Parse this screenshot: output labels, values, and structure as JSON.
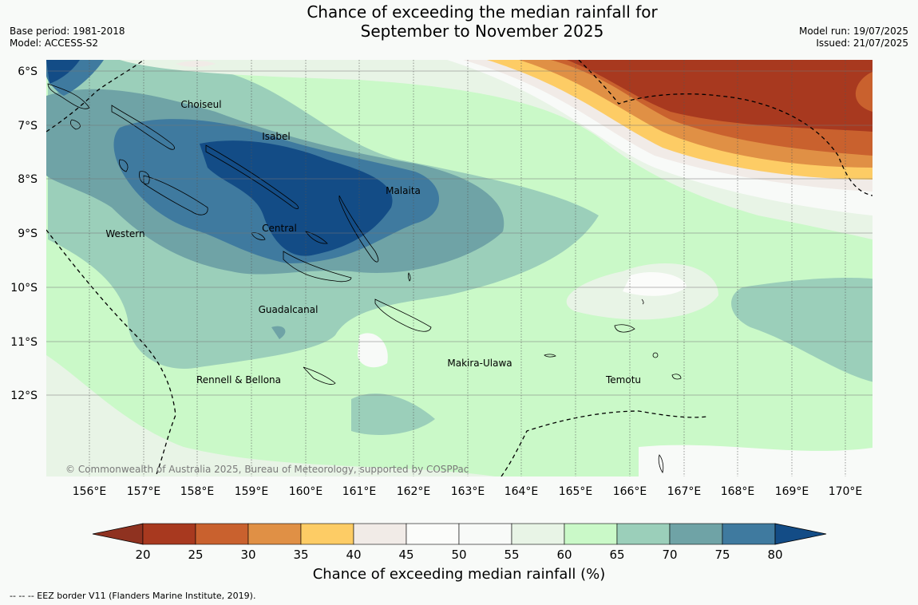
{
  "title_line1": "Chance of exceeding the median rainfall for",
  "title_line2": "September to November 2025",
  "base_period": "Base period: 1981-2018",
  "model": "Model: ACCESS-S2",
  "model_run": "Model run: 19/07/2025",
  "issued": "Issued: 21/07/2025",
  "copyright": "© Commonwealth of Australia 2025, Bureau of Meteorology, supported by COSPPac",
  "lat_labels": [
    "6°S",
    "7°S",
    "8°S",
    "9°S",
    "10°S",
    "11°S",
    "12°S"
  ],
  "lon_labels": [
    "156°E",
    "157°E",
    "158°E",
    "159°E",
    "160°E",
    "161°E",
    "162°E",
    "163°E",
    "164°E",
    "165°E",
    "166°E",
    "167°E",
    "168°E",
    "169°E",
    "170°E"
  ],
  "province_labels": [
    "Choiseul",
    "Isabel",
    "Malaita",
    "Western",
    "Central",
    "Guadalcanal",
    "Makira-Ulawa",
    "Rennell & Bellona",
    "Temotu"
  ],
  "colorbar": {
    "ticks": [
      "20",
      "25",
      "30",
      "35",
      "40",
      "45",
      "50",
      "55",
      "60",
      "65",
      "70",
      "75",
      "80"
    ],
    "colors": [
      "#a8391f",
      "#c9612e",
      "#e09045",
      "#fdcc65",
      "#f1ebe7",
      "#fbfcfa",
      "#f8faf8",
      "#e8f4e6",
      "#caf9c8",
      "#9bcfba",
      "#6fa3a6",
      "#3f7a9f",
      "#134c86"
    ],
    "low_color": "#8f3220",
    "high_color": "#134c86",
    "title": "Chance of exceeding median rainfall (%)"
  },
  "footnote": "--  --  -- EEZ border V11 (Flanders Marine Institute, 2019)."
}
